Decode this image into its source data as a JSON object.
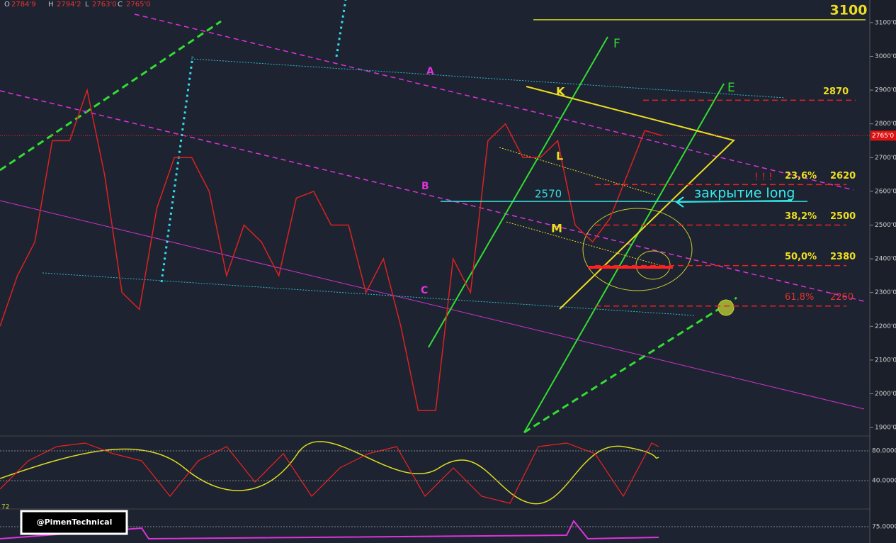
{
  "header": {
    "ohlc": [
      {
        "key": "O",
        "value": "2784'9"
      },
      {
        "key": "H",
        "value": "2794'2"
      },
      {
        "key": "L",
        "value": "2763'0"
      },
      {
        "key": "C",
        "value": "2765'0"
      }
    ]
  },
  "price_axis": {
    "ylim": [
      1875,
      3167
    ],
    "ticks": [
      {
        "value": 1900,
        "label": "1900'0"
      },
      {
        "value": 2000,
        "label": "2000'0"
      },
      {
        "value": 2100,
        "label": "2100'0"
      },
      {
        "value": 2200,
        "label": "2200'0"
      },
      {
        "value": 2300,
        "label": "2300'0"
      },
      {
        "value": 2400,
        "label": "2400'0"
      },
      {
        "value": 2500,
        "label": "2500'0"
      },
      {
        "value": 2600,
        "label": "2600'0"
      },
      {
        "value": 2700,
        "label": "2700'0"
      },
      {
        "value": 2800,
        "label": "2800'0"
      },
      {
        "value": 2900,
        "label": "2900'0"
      },
      {
        "value": 3000,
        "label": "3000'0"
      },
      {
        "value": 3100,
        "label": "3100'0"
      }
    ],
    "last_price": {
      "value": 2765,
      "label": "2765'0"
    }
  },
  "price_series": {
    "values": [
      2200,
      2350,
      2450,
      2750,
      2750,
      2900,
      2650,
      2300,
      2250,
      2550,
      2700,
      2700,
      2600,
      2350,
      2500,
      2450,
      2350,
      2580,
      2600,
      2500,
      2500,
      2300,
      2400,
      2200,
      1950,
      1950,
      2400,
      2300,
      2750,
      2800,
      2700,
      2700,
      2750,
      2500,
      2450,
      2520,
      2650,
      2780,
      2765
    ]
  },
  "levels": {
    "top": 3100,
    "resistance": 2870,
    "close_level": 2570,
    "fib": [
      {
        "ratio": "23,6%",
        "price": 2620
      },
      {
        "ratio": "38,2%",
        "price": 2500
      },
      {
        "ratio": "50,0%",
        "price": 2380
      },
      {
        "ratio": "61,8%",
        "price": 2260
      }
    ]
  },
  "annotations": {
    "close_long": "закрытие long",
    "alert": "! ! !",
    "A": "A",
    "B": "B",
    "C": "C",
    "K": "K",
    "L": "L",
    "M": "M",
    "F": "F",
    "E": "E"
  },
  "oscillator": {
    "ylim": [
      5,
      100
    ],
    "ticks": [
      {
        "value": 80,
        "label": "80.0000"
      },
      {
        "value": 40,
        "label": "40.0000"
      }
    ],
    "left_value": 72
  },
  "lower_panel": {
    "ylim": [
      60,
      90
    ],
    "ticks": [
      {
        "value": 75,
        "label": "75.0000"
      }
    ]
  },
  "watermark": "@PimenTechnical"
}
